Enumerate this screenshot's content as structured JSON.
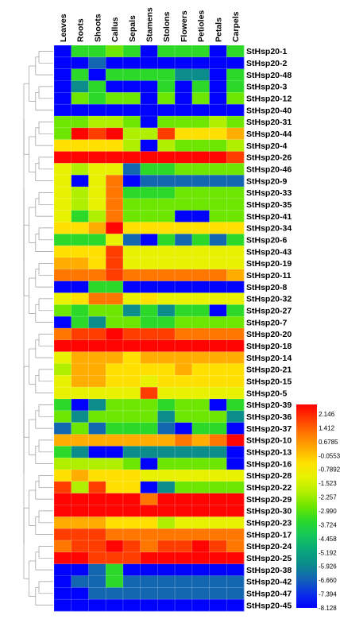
{
  "chart_data": {
    "type": "heatmap",
    "columns": [
      "Leaves",
      "Roots",
      "Shoots",
      "Callus",
      "Sepals",
      "Stamens",
      "Stolons",
      "Flowers",
      "Petioles",
      "Petals",
      "Carpels"
    ],
    "rows": [
      "StHsp20-1",
      "StHsp20-2",
      "StHsp20-48",
      "StHsp20-3",
      "StHsp20-12",
      "StHsp20-40",
      "StHsp20-31",
      "StHsp20-44",
      "StHsp20-4",
      "StHsp20-26",
      "StHsp20-46",
      "StHsp20-9",
      "StHsp20-33",
      "StHsp20-35",
      "StHsp20-41",
      "StHsp20-34",
      "StHsp20-6",
      "StHsp20-43",
      "StHsp20-19",
      "StHsp20-11",
      "StHsp20-8",
      "StHsp20-32",
      "StHsp20-27",
      "StHsp20-7",
      "StHsp20-20",
      "StHsp20-18",
      "StHsp20-14",
      "StHsp20-21",
      "StHsp20-15",
      "StHsp20-5",
      "StHsp20-39",
      "StHsp20-36",
      "StHsp20-37",
      "StHsp20-10",
      "StHsp20-13",
      "StHsp20-16",
      "StHsp20-28",
      "StHsp20-22",
      "StHsp20-29",
      "StHsp20-30",
      "StHsp20-23",
      "StHsp20-17",
      "StHsp20-24",
      "StHsp20-25",
      "StHsp20-38",
      "StHsp20-42",
      "StHsp20-47",
      "StHsp20-45"
    ],
    "values": [
      [
        -8.1,
        -3.7,
        -3.7,
        -3.0,
        -3.7,
        -8.1,
        -3.7,
        -3.7,
        -3.7,
        -8.1,
        -3.7
      ],
      [
        -8.1,
        -8.1,
        -6.6,
        -8.1,
        -8.1,
        -8.1,
        -8.1,
        -8.1,
        -8.1,
        -8.1,
        -8.1
      ],
      [
        -8.1,
        -3.7,
        -8.1,
        -3.7,
        -3.7,
        -3.7,
        -3.7,
        -5.9,
        -5.9,
        -8.1,
        -3.7
      ],
      [
        -8.1,
        -5.9,
        -3.7,
        -8.1,
        -8.1,
        -8.1,
        -3.7,
        -8.1,
        -3.7,
        -8.1,
        -3.7
      ],
      [
        -8.1,
        -3.0,
        -3.7,
        -3.0,
        -3.0,
        -8.1,
        -3.0,
        -8.1,
        -3.0,
        -8.1,
        -3.0
      ],
      [
        -8.1,
        -8.1,
        -8.1,
        -8.1,
        -8.1,
        -8.1,
        -8.1,
        -8.1,
        -8.1,
        -8.1,
        -8.1
      ],
      [
        -3.0,
        -3.0,
        -2.3,
        -2.3,
        -3.0,
        -8.1,
        -3.0,
        -3.0,
        -3.0,
        -2.3,
        -3.0
      ],
      [
        -3.0,
        2.1,
        1.4,
        2.1,
        -2.3,
        -2.3,
        1.4,
        -0.8,
        -0.8,
        -0.8,
        -0.1
      ],
      [
        -0.8,
        -0.8,
        -0.8,
        -0.8,
        -2.3,
        -8.1,
        -2.3,
        -3.0,
        -3.0,
        -3.0,
        -2.3
      ],
      [
        2.1,
        2.1,
        2.1,
        2.1,
        2.1,
        2.1,
        2.1,
        2.1,
        2.1,
        2.1,
        1.4
      ],
      [
        -1.5,
        -2.3,
        -1.5,
        -1.5,
        -6.6,
        -3.7,
        -3.7,
        -3.0,
        -3.0,
        -3.0,
        -3.0
      ],
      [
        -1.5,
        -8.1,
        -1.5,
        0.7,
        -8.1,
        -6.6,
        -6.6,
        -6.6,
        -6.6,
        -6.6,
        -6.6
      ],
      [
        -1.5,
        -2.3,
        -1.5,
        0.7,
        -3.7,
        -3.7,
        -3.7,
        -3.0,
        -3.0,
        -3.0,
        -3.0
      ],
      [
        -1.5,
        -2.3,
        -1.5,
        0.7,
        -3.0,
        -3.0,
        -3.0,
        -3.0,
        -3.0,
        -3.0,
        -3.0
      ],
      [
        -1.5,
        -3.7,
        -2.3,
        0.7,
        -3.0,
        -3.0,
        -3.0,
        -8.1,
        -8.1,
        -3.0,
        -3.0
      ],
      [
        -0.8,
        -0.8,
        -0.1,
        2.1,
        -0.8,
        -0.8,
        -0.8,
        -0.8,
        -0.8,
        -0.8,
        -0.8
      ],
      [
        -3.7,
        -3.7,
        -3.7,
        -1.5,
        -6.6,
        -8.1,
        -3.7,
        -6.6,
        -3.7,
        -6.6,
        -3.7
      ],
      [
        -0.8,
        -0.8,
        -0.8,
        1.4,
        -1.5,
        -1.5,
        -1.5,
        -1.5,
        -1.5,
        -1.5,
        -1.5
      ],
      [
        -0.1,
        -0.1,
        -0.8,
        1.4,
        -1.5,
        -1.5,
        -1.5,
        -1.5,
        -1.5,
        -1.5,
        -1.5
      ],
      [
        0.7,
        0.7,
        0.7,
        1.4,
        0.7,
        0.7,
        0.7,
        0.7,
        0.7,
        0.7,
        -0.1
      ],
      [
        -8.1,
        -8.1,
        -3.7,
        -3.7,
        -8.1,
        -8.1,
        -8.1,
        -8.1,
        -8.1,
        -8.1,
        -8.1
      ],
      [
        -1.5,
        -0.8,
        0.7,
        0.7,
        -1.5,
        -0.8,
        -1.5,
        -1.5,
        -1.5,
        -1.5,
        -1.5
      ],
      [
        -3.0,
        -3.7,
        -3.0,
        -3.0,
        -5.9,
        -3.7,
        -5.9,
        -3.7,
        -3.7,
        -8.1,
        -3.7
      ],
      [
        -8.1,
        -3.7,
        -5.9,
        -3.0,
        -3.0,
        -3.7,
        -3.7,
        -3.0,
        -3.0,
        -3.0,
        -3.0
      ],
      [
        0.7,
        1.4,
        1.4,
        2.1,
        1.4,
        1.4,
        1.4,
        0.7,
        0.7,
        0.7,
        0.7
      ],
      [
        2.1,
        2.1,
        2.1,
        2.1,
        2.1,
        2.1,
        2.1,
        2.1,
        2.1,
        2.1,
        2.1
      ],
      [
        -1.5,
        -0.1,
        -0.1,
        -0.1,
        -0.8,
        -0.1,
        -0.1,
        -0.1,
        -0.1,
        -0.1,
        -0.1
      ],
      [
        -2.3,
        -0.1,
        -0.1,
        -0.8,
        -0.8,
        -0.8,
        -0.8,
        -0.1,
        -0.8,
        -0.8,
        -0.8
      ],
      [
        -1.5,
        -0.1,
        -0.1,
        -0.8,
        -0.8,
        -1.5,
        -0.8,
        -0.8,
        -0.8,
        -0.8,
        -0.8
      ],
      [
        -1.5,
        -1.5,
        -1.5,
        -1.5,
        -1.5,
        1.4,
        -1.5,
        -1.5,
        -1.5,
        -1.5,
        -1.5
      ],
      [
        -3.7,
        -8.1,
        -5.9,
        -3.0,
        -3.0,
        -3.0,
        -3.7,
        -3.0,
        -3.0,
        -8.1,
        -3.7
      ],
      [
        -3.0,
        -5.9,
        -3.0,
        -3.0,
        -3.0,
        -3.0,
        -5.9,
        -3.0,
        -3.0,
        -3.0,
        -5.9
      ],
      [
        -6.6,
        -3.0,
        -6.6,
        -3.7,
        -3.7,
        -3.7,
        -6.6,
        -8.1,
        -3.7,
        -3.7,
        -8.1
      ],
      [
        -0.1,
        -0.1,
        -0.1,
        -0.1,
        -0.1,
        -0.1,
        -0.1,
        0.7,
        -0.1,
        0.7,
        2.1
      ],
      [
        -3.7,
        -5.9,
        -8.1,
        -8.1,
        -5.9,
        -5.9,
        -5.9,
        -5.9,
        -5.9,
        -5.9,
        -8.1
      ],
      [
        -2.3,
        -2.3,
        -2.3,
        -2.3,
        -3.0,
        -8.1,
        -3.0,
        -3.0,
        -3.0,
        -3.0,
        -8.1
      ],
      [
        -0.8,
        -0.1,
        -0.8,
        -0.8,
        -0.8,
        -1.5,
        -1.5,
        -1.5,
        -1.5,
        -1.5,
        -1.5
      ],
      [
        1.4,
        -2.3,
        1.4,
        -0.8,
        -0.8,
        -8.1,
        -5.9,
        -3.0,
        -3.0,
        -3.0,
        -3.0
      ],
      [
        2.1,
        2.1,
        2.1,
        2.1,
        2.1,
        0.7,
        2.1,
        2.1,
        2.1,
        2.1,
        2.1
      ],
      [
        2.1,
        2.1,
        2.1,
        2.1,
        2.1,
        2.1,
        2.1,
        2.1,
        2.1,
        2.1,
        2.1
      ],
      [
        -0.1,
        -0.1,
        -0.1,
        -0.8,
        -0.8,
        -0.8,
        -2.3,
        -1.5,
        -1.5,
        -1.5,
        -1.5
      ],
      [
        1.4,
        1.4,
        1.4,
        0.7,
        0.7,
        0.7,
        0.7,
        0.7,
        0.7,
        0.7,
        0.7
      ],
      [
        0.7,
        1.4,
        1.4,
        2.1,
        1.4,
        0.7,
        1.4,
        1.4,
        2.1,
        1.4,
        0.7
      ],
      [
        2.1,
        2.1,
        1.4,
        1.4,
        1.4,
        2.1,
        2.1,
        2.1,
        2.1,
        2.1,
        2.1
      ],
      [
        -8.1,
        -8.1,
        -6.6,
        -3.7,
        -8.1,
        -8.1,
        -8.1,
        -8.1,
        -8.1,
        -8.1,
        -8.1
      ],
      [
        -8.1,
        -6.6,
        -6.6,
        -3.7,
        -6.6,
        -6.6,
        -6.6,
        -6.6,
        -6.6,
        -6.6,
        -6.6
      ],
      [
        -8.1,
        -8.1,
        -6.6,
        -6.6,
        -6.6,
        -6.6,
        -6.6,
        -6.6,
        -6.6,
        -6.6,
        -6.6
      ],
      [
        -8.1,
        -8.1,
        -8.1,
        -8.1,
        -8.1,
        -8.1,
        -8.1,
        -8.1,
        -8.1,
        -8.1,
        -8.1
      ]
    ],
    "color_scale": {
      "stops": [
        {
          "value": 2.146,
          "label": "2.146",
          "color": "#ff0000"
        },
        {
          "value": 1.412,
          "label": "1.412",
          "color": "#ff3c00"
        },
        {
          "value": 0.6785,
          "label": "0.6785",
          "color": "#ff7800"
        },
        {
          "value": -0.0553,
          "label": "-0.0553",
          "color": "#ffaa00"
        },
        {
          "value": -0.7892,
          "label": "-0.7892",
          "color": "#ffe000"
        },
        {
          "value": -1.523,
          "label": "-1.523",
          "color": "#e6f200"
        },
        {
          "value": -2.257,
          "label": "-2.257",
          "color": "#b4f000"
        },
        {
          "value": -2.99,
          "label": "-2.990",
          "color": "#6ee600"
        },
        {
          "value": -3.724,
          "label": "-3.724",
          "color": "#2ad92a"
        },
        {
          "value": -4.458,
          "label": "-4.458",
          "color": "#14c85a"
        },
        {
          "value": -5.192,
          "label": "-5.192",
          "color": "#0aa87a"
        },
        {
          "value": -5.926,
          "label": "-5.926",
          "color": "#0a8c8c"
        },
        {
          "value": -6.66,
          "label": "-6.660",
          "color": "#1464b4"
        },
        {
          "value": -7.394,
          "label": "-7.394",
          "color": "#0a32e6"
        },
        {
          "value": -8.128,
          "label": "-8.128",
          "color": "#0000ff"
        }
      ]
    },
    "dendrogram": "row clustering tree on left",
    "legend_position": "right"
  }
}
